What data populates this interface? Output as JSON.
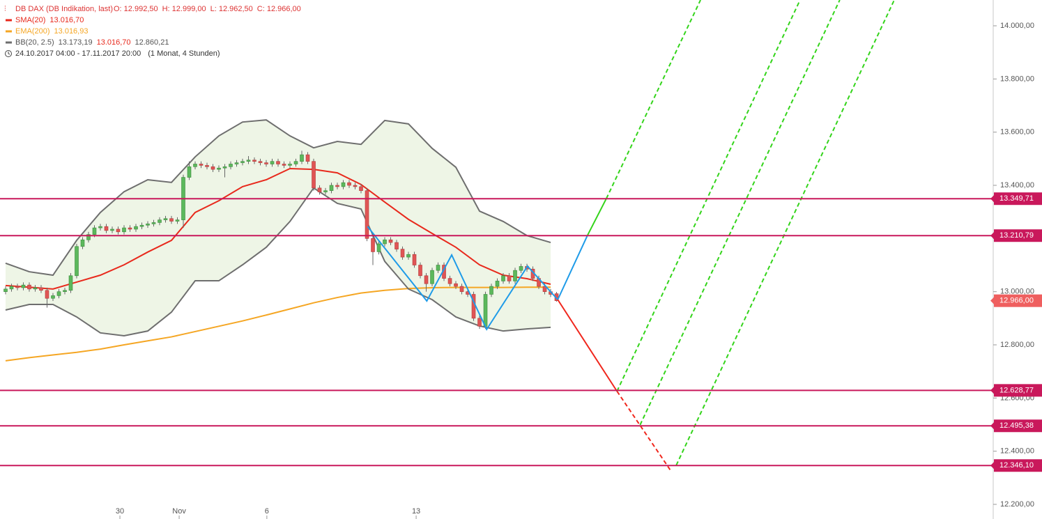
{
  "chart_data": {
    "type": "candlestick",
    "header": {
      "title": "DB DAX (DB Indikation, last)",
      "ohlc_labels": [
        "O: 12.992,50",
        "H: 12.999,00",
        "L: 12.962,50",
        "C: 12.966,00"
      ],
      "period": "24.10.2017 04:00 - 17.11.2017 20:00",
      "period_note": "(1 Monat, 4 Stunden)"
    },
    "xlim": [
      -0.94,
      166.7
    ],
    "xticks": [
      {
        "value": 19.3,
        "label": "30"
      },
      {
        "value": 29.3,
        "label": "Nov"
      },
      {
        "value": 44.1,
        "label": "6"
      },
      {
        "value": 69.3,
        "label": "13"
      }
    ],
    "ylim": [
      12145,
      14097
    ],
    "yticks": [
      {
        "value": 12200,
        "label": "12.200,00"
      },
      {
        "value": 12400,
        "label": "12.400,00"
      },
      {
        "value": 12600,
        "label": "12.600,00"
      },
      {
        "value": 12800,
        "label": "12.800,00"
      },
      {
        "value": 13000,
        "label": "13.000,00"
      },
      {
        "value": 13200,
        "label": "13.200,00"
      },
      {
        "value": 13400,
        "label": "13.400,00"
      },
      {
        "value": 13600,
        "label": "13.600,00"
      },
      {
        "value": 13800,
        "label": "13.800,00"
      },
      {
        "value": 14000,
        "label": "14.000,00"
      }
    ],
    "up_color": "#5cb85c",
    "down_color": "#e05555",
    "candles": {
      "open": [
        13000,
        13010,
        13020,
        13015,
        13025,
        13010,
        13015,
        13005,
        12975,
        12985,
        13000,
        13005,
        13060,
        13170,
        13195,
        13215,
        13240,
        13245,
        13230,
        13235,
        13225,
        13240,
        13235,
        13245,
        13250,
        13255,
        13260,
        13270,
        13275,
        13265,
        13270,
        13430,
        13470,
        13480,
        13475,
        13470,
        13460,
        13465,
        13470,
        13480,
        13485,
        13490,
        13495,
        13490,
        13485,
        13480,
        13490,
        13480,
        13475,
        13480,
        13490,
        13515,
        13490,
        13390,
        13375,
        13380,
        13400,
        13395,
        13410,
        13400,
        13395,
        13380,
        13200,
        13150,
        13180,
        13195,
        13185,
        13160,
        13130,
        13140,
        13100,
        13060,
        13030,
        13080,
        13100,
        13050,
        13030,
        13020,
        13000,
        12990,
        12900,
        12870,
        12990,
        13020,
        13040,
        13060,
        13040,
        13080,
        13095,
        13085,
        13050,
        13020,
        13000,
        12992.5
      ],
      "high": [
        13020,
        13030,
        13030,
        13035,
        13035,
        13025,
        13025,
        13015,
        12995,
        13010,
        13015,
        13070,
        13180,
        13205,
        13225,
        13250,
        13255,
        13255,
        13245,
        13245,
        13250,
        13250,
        13255,
        13260,
        13265,
        13270,
        13280,
        13285,
        13285,
        13280,
        13440,
        13490,
        13490,
        13490,
        13485,
        13480,
        13475,
        13480,
        13490,
        13495,
        13500,
        13510,
        13505,
        13500,
        13495,
        13500,
        13500,
        13490,
        13490,
        13500,
        13530,
        13525,
        13500,
        13400,
        13390,
        13410,
        13410,
        13420,
        13420,
        13410,
        13405,
        13390,
        13210,
        13190,
        13205,
        13205,
        13195,
        13170,
        13150,
        13150,
        13110,
        13070,
        13090,
        13110,
        13110,
        13060,
        13040,
        13030,
        13010,
        13000,
        12910,
        13000,
        13030,
        13050,
        13070,
        13070,
        13090,
        13105,
        13105,
        13095,
        13060,
        13030,
        13010,
        12999
      ],
      "low": [
        12990,
        13000,
        13005,
        13005,
        13000,
        13000,
        12995,
        12940,
        12965,
        12975,
        12990,
        12995,
        13050,
        13160,
        13185,
        13205,
        13230,
        13220,
        13220,
        13215,
        13215,
        13225,
        13225,
        13235,
        13240,
        13245,
        13250,
        13260,
        13255,
        13255,
        13240,
        13420,
        13460,
        13465,
        13460,
        13450,
        13450,
        13430,
        13460,
        13470,
        13475,
        13480,
        13480,
        13475,
        13470,
        13470,
        13470,
        13465,
        13465,
        13470,
        13480,
        13480,
        13380,
        13365,
        13365,
        13370,
        13385,
        13385,
        13390,
        13385,
        13370,
        13190,
        13100,
        13140,
        13170,
        13175,
        13150,
        13120,
        13120,
        13090,
        13050,
        13000,
        13020,
        13070,
        13040,
        13020,
        13010,
        12990,
        12980,
        12890,
        12860,
        12860,
        12980,
        13010,
        13030,
        13030,
        13030,
        13070,
        13075,
        13040,
        13010,
        12990,
        12980,
        12962.5
      ],
      "close": [
        13010,
        13020,
        13015,
        13025,
        13010,
        13015,
        13005,
        12975,
        12985,
        13000,
        13005,
        13060,
        13170,
        13195,
        13215,
        13240,
        13245,
        13230,
        13235,
        13225,
        13240,
        13235,
        13245,
        13250,
        13255,
        13260,
        13270,
        13275,
        13265,
        13270,
        13430,
        13470,
        13480,
        13475,
        13470,
        13460,
        13465,
        13470,
        13480,
        13485,
        13490,
        13495,
        13490,
        13485,
        13480,
        13490,
        13480,
        13475,
        13480,
        13490,
        13515,
        13490,
        13390,
        13375,
        13380,
        13400,
        13395,
        13410,
        13400,
        13395,
        13380,
        13200,
        13150,
        13180,
        13195,
        13185,
        13160,
        13130,
        13140,
        13100,
        13060,
        13030,
        13080,
        13100,
        13050,
        13030,
        13020,
        13000,
        12990,
        12900,
        12870,
        12990,
        13020,
        13040,
        13060,
        13040,
        13080,
        13095,
        13085,
        13050,
        13020,
        13000,
        12990,
        12966
      ]
    },
    "band_fill": "#eef5e6",
    "indicators": [
      {
        "name": "SMA(20)",
        "color": "#e8291c",
        "legend_value": "13.016,70",
        "x": [
          0,
          4,
          8,
          12,
          16,
          20,
          24,
          28,
          32,
          36,
          40,
          44,
          48,
          52,
          56,
          60,
          64,
          68,
          72,
          76,
          80,
          84,
          88,
          92
        ],
        "values": [
          13023,
          13017,
          13010,
          13036,
          13062,
          13101,
          13149,
          13193,
          13298,
          13342,
          13395,
          13421,
          13463,
          13460,
          13447,
          13403,
          13337,
          13272,
          13219,
          13167,
          13101,
          13062,
          13049,
          13028
        ]
      },
      {
        "name": "EMA(200)",
        "color": "#f5a623",
        "legend_value": "13.016,93",
        "x": [
          0,
          4,
          8,
          12,
          16,
          20,
          24,
          28,
          32,
          36,
          40,
          44,
          48,
          52,
          56,
          60,
          64,
          68,
          72,
          76,
          80,
          84,
          88,
          92
        ],
        "values": [
          12740,
          12752,
          12762,
          12772,
          12784,
          12800,
          12815,
          12830,
          12850,
          12870,
          12890,
          12912,
          12935,
          12958,
          12978,
          12995,
          13005,
          13012,
          13015,
          13016,
          13016,
          13016,
          13017,
          13017
        ]
      },
      {
        "name": "BB(20, 2.5)",
        "color": "#6e6e6e",
        "legend_values": [
          "13.173,19",
          "13.016,70",
          "12.860,21"
        ],
        "band": "upper",
        "x": [
          0,
          4,
          8,
          12,
          16,
          20,
          24,
          28,
          32,
          36,
          40,
          44,
          48,
          52,
          56,
          60,
          64,
          68,
          72,
          76,
          80,
          84,
          88,
          92
        ],
        "values": [
          13107,
          13075,
          13062,
          13193,
          13298,
          13376,
          13421,
          13411,
          13507,
          13586,
          13638,
          13646,
          13586,
          13541,
          13565,
          13554,
          13644,
          13631,
          13539,
          13468,
          13303,
          13264,
          13211,
          13185
        ]
      },
      {
        "color": "#6e6e6e",
        "band": "lower",
        "x": [
          0,
          4,
          8,
          12,
          16,
          20,
          24,
          28,
          32,
          36,
          40,
          44,
          48,
          52,
          56,
          60,
          64,
          68,
          72,
          76,
          80,
          84,
          88,
          92
        ],
        "values": [
          12931,
          12952,
          12952,
          12905,
          12845,
          12834,
          12852,
          12923,
          13041,
          13041,
          13101,
          13167,
          13264,
          13390,
          13332,
          13311,
          13114,
          13010,
          12970,
          12905,
          12871,
          12852,
          12860,
          12866
        ]
      }
    ],
    "levels": {
      "color": "#c9185b",
      "values": [
        13349.71,
        13210.79,
        12628.77,
        12495.38,
        12346.1
      ],
      "value_labels": [
        "13.349,71",
        "13.210,79",
        "12.628,77",
        "12.495,38",
        "12.346,10"
      ]
    },
    "last_price": {
      "value": 12966,
      "label": "12.966,00",
      "color": "#ef5f5f"
    },
    "drawings": [
      {
        "color": "#1e9be8",
        "dashed": false,
        "x": [
          61.1,
          71.1,
          75.3,
          81.2,
          88.1,
          93.2,
          98.2
        ],
        "y": [
          13245,
          12965,
          13138,
          12858,
          13096,
          12970,
          13211
        ]
      },
      {
        "color": "#33d41a",
        "dashed": false,
        "x": [
          98.2,
          101.4
        ],
        "y": [
          13211,
          13350
        ]
      },
      {
        "color": "#33d41a",
        "dashed": true,
        "x": [
          101.4,
          117.3
        ],
        "y": [
          13350,
          14097
        ]
      },
      {
        "color": "#f0261c",
        "dashed": false,
        "x": [
          93.2,
          103.2
        ],
        "y": [
          12970,
          12625.5
        ]
      },
      {
        "color": "#f0261c",
        "dashed": true,
        "x": [
          103.2,
          112.2
        ],
        "y": [
          12625.5,
          12329
        ]
      },
      {
        "color": "#33d41a",
        "dashed": true,
        "x": [
          103.2,
          134.1
        ],
        "y": [
          12625.5,
          14097
        ]
      },
      {
        "color": "#33d41a",
        "dashed": true,
        "x": [
          107.1,
          140.8
        ],
        "y": [
          12499,
          14097
        ]
      },
      {
        "color": "#33d41a",
        "dashed": true,
        "x": [
          113.2,
          150.0
        ],
        "y": [
          12347,
          14097
        ]
      }
    ]
  }
}
